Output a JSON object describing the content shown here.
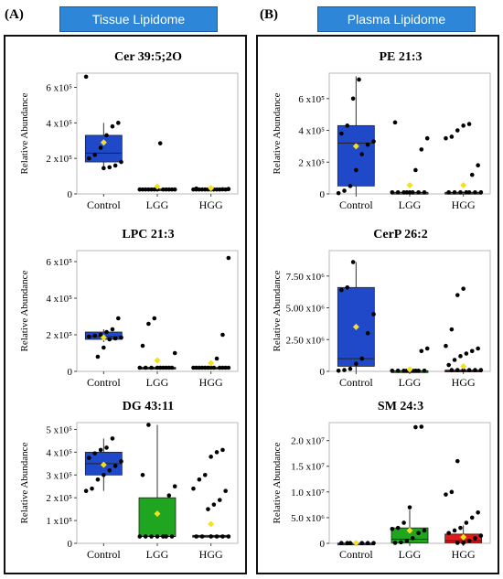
{
  "panels": {
    "A": {
      "letter": "(A)",
      "header": "Tissue Lipidome"
    },
    "B": {
      "letter": "(B)",
      "header": "Plasma Lipidome"
    }
  },
  "colors": {
    "header": "#2e86d9",
    "control_box": "#1f49c9",
    "lgg_box": "#1fa51f",
    "hgg_box": "#e01b1b",
    "mean_marker": "#f5e11a"
  },
  "chart_data": [
    {
      "type": "box",
      "title": "Cer 39:5;2O",
      "ylabel": "Relative Abundance",
      "categories": [
        "Control",
        "LGG",
        "HGG"
      ],
      "ylim": [
        0,
        680000
      ],
      "yticks": [
        0,
        200000,
        400000,
        600000
      ],
      "yticklabels": [
        "0",
        "2 x10⁵",
        "4 x10⁵",
        "6 x10⁵"
      ],
      "boxes": [
        {
          "q1": 180000,
          "median": 230000,
          "q3": 330000,
          "whislo": 150000,
          "whishi": 400000,
          "mean": 290000,
          "points": [
            660000,
            400000,
            380000,
            330000,
            260000,
            220000,
            200000,
            180000,
            160000,
            150000,
            145000
          ]
        },
        {
          "q1": 22000,
          "median": 25000,
          "q3": 28000,
          "whislo": 20000,
          "whishi": 30000,
          "mean": 42000,
          "points": [
            285000,
            25000,
            25000,
            25000,
            25000,
            25000,
            25000,
            25000,
            25000,
            25000,
            25000,
            25000,
            25000
          ]
        },
        {
          "q1": 22000,
          "median": 25000,
          "q3": 28000,
          "whislo": 20000,
          "whishi": 32000,
          "mean": 32000,
          "points": [
            30000,
            28000,
            26000,
            25000,
            25000,
            25000,
            25000,
            25000,
            25000,
            25000,
            25000,
            25000,
            25000,
            25000
          ]
        }
      ]
    },
    {
      "type": "box",
      "title": "LPC 21:3",
      "ylabel": "Relative Abundance",
      "categories": [
        "Control",
        "LGG",
        "HGG"
      ],
      "ylim": [
        0,
        660000
      ],
      "yticks": [
        0,
        200000,
        400000,
        600000
      ],
      "yticklabels": [
        "0",
        "2 x10⁵",
        "4 x10⁵",
        "6 x10⁵"
      ],
      "boxes": [
        {
          "q1": 175000,
          "median": 190000,
          "q3": 215000,
          "whislo": 160000,
          "whishi": 230000,
          "mean": 185000,
          "points": [
            290000,
            230000,
            215000,
            200000,
            195000,
            190000,
            185000,
            180000,
            175000,
            130000,
            80000
          ]
        },
        {
          "q1": 15000,
          "median": 18000,
          "q3": 22000,
          "whislo": 10000,
          "whishi": 25000,
          "mean": 60000,
          "points": [
            290000,
            260000,
            140000,
            100000,
            20000,
            20000,
            20000,
            20000,
            20000,
            20000,
            20000,
            20000,
            20000
          ]
        },
        {
          "q1": 15000,
          "median": 18000,
          "q3": 22000,
          "whislo": 10000,
          "whishi": 25000,
          "mean": 45000,
          "points": [
            620000,
            200000,
            70000,
            20000,
            20000,
            20000,
            20000,
            20000,
            20000,
            20000,
            20000,
            20000,
            20000,
            20000,
            20000
          ]
        }
      ]
    },
    {
      "type": "box",
      "title": "DG 43:11",
      "ylabel": "Relative Abundance",
      "categories": [
        "Control",
        "LGG",
        "HGG"
      ],
      "ylim": [
        0,
        530000
      ],
      "yticks": [
        0,
        100000,
        200000,
        300000,
        400000,
        500000
      ],
      "yticklabels": [
        "0",
        "1 x10⁵",
        "2 x10⁵",
        "3 x10⁵",
        "4 x10⁵",
        "5 x10⁵"
      ],
      "boxes": [
        {
          "q1": 300000,
          "median": 350000,
          "q3": 400000,
          "whislo": 230000,
          "whishi": 460000,
          "mean": 345000,
          "points": [
            460000,
            420000,
            410000,
            395000,
            375000,
            360000,
            340000,
            320000,
            300000,
            280000,
            240000,
            230000
          ]
        },
        {
          "q1": 30000,
          "median": 30000,
          "q3": 200000,
          "whislo": 30000,
          "whishi": 520000,
          "mean": 130000,
          "points": [
            520000,
            300000,
            250000,
            210000,
            30000,
            30000,
            30000,
            30000,
            30000,
            30000,
            30000
          ]
        },
        {
          "q1": 28000,
          "median": 30000,
          "q3": 35000,
          "whislo": 25000,
          "whishi": 40000,
          "mean": 85000,
          "points": [
            410000,
            400000,
            380000,
            300000,
            280000,
            240000,
            230000,
            190000,
            170000,
            150000,
            30000,
            30000,
            30000,
            30000,
            30000,
            30000
          ]
        }
      ]
    },
    {
      "type": "box",
      "title": "PE 21:3",
      "ylabel": "Relative Abundance",
      "categories": [
        "Control",
        "LGG",
        "HGG"
      ],
      "ylim": [
        0,
        760000
      ],
      "yticks": [
        0,
        200000,
        400000,
        600000
      ],
      "yticklabels": [
        "0",
        "2 x10⁵",
        "4 x10⁵",
        "6 x10⁵"
      ],
      "boxes": [
        {
          "q1": 50000,
          "median": 320000,
          "q3": 430000,
          "whislo": 0,
          "whishi": 740000,
          "mean": 300000,
          "points": [
            720000,
            600000,
            430000,
            380000,
            330000,
            310000,
            250000,
            150000,
            50000,
            20000,
            5000
          ]
        },
        {
          "q1": 5000,
          "median": 8000,
          "q3": 10000,
          "whislo": 0,
          "whishi": 15000,
          "mean": 55000,
          "points": [
            450000,
            350000,
            280000,
            150000,
            10000,
            10000,
            10000,
            10000,
            10000,
            10000,
            10000,
            10000
          ]
        },
        {
          "q1": 5000,
          "median": 8000,
          "q3": 10000,
          "whislo": 0,
          "whishi": 15000,
          "mean": 55000,
          "points": [
            440000,
            430000,
            400000,
            360000,
            350000,
            180000,
            120000,
            10000,
            10000,
            10000,
            10000,
            10000,
            10000,
            10000
          ]
        }
      ]
    },
    {
      "type": "box",
      "title": "CerP 26:2",
      "ylabel": "Relative Abundance",
      "categories": [
        "Control",
        "LGG",
        "HGG"
      ],
      "ylim": [
        0,
        9500000
      ],
      "yticks": [
        0,
        2500000,
        5000000,
        7500000
      ],
      "yticklabels": [
        "0",
        "2.50 x10⁶",
        "5.00 x10⁶",
        "7.50 x10⁶"
      ],
      "boxes": [
        {
          "q1": 400000,
          "median": 1000000,
          "q3": 6600000,
          "whislo": 0,
          "whishi": 8600000,
          "mean": 3500000,
          "points": [
            8600000,
            6600000,
            6400000,
            4500000,
            3000000,
            1000000,
            600000,
            200000,
            100000,
            50000
          ]
        },
        {
          "q1": 0,
          "median": 20000,
          "q3": 50000,
          "whislo": 0,
          "whishi": 80000,
          "mean": 150000,
          "points": [
            1800000,
            1600000,
            50000,
            50000,
            50000,
            50000,
            50000,
            50000,
            50000,
            50000,
            50000
          ]
        },
        {
          "q1": 0,
          "median": 30000,
          "q3": 100000,
          "whislo": 0,
          "whishi": 300000,
          "mean": 400000,
          "points": [
            6500000,
            6000000,
            3300000,
            2000000,
            1800000,
            1600000,
            1400000,
            1200000,
            900000,
            500000,
            100000,
            100000,
            100000,
            100000,
            100000,
            100000
          ]
        }
      ]
    },
    {
      "type": "box",
      "title": "SM 24:3",
      "ylabel": "Relative Abundance",
      "categories": [
        "Control",
        "LGG",
        "HGG"
      ],
      "ylim": [
        0,
        23500000
      ],
      "yticks": [
        0,
        5000000,
        10000000,
        15000000,
        20000000
      ],
      "yticklabels": [
        "0",
        "5.0 x10⁶",
        "1.0 x10⁷",
        "1.5 x10⁷",
        "2.0 x10⁷"
      ],
      "boxes": [
        {
          "q1": 0,
          "median": 0,
          "q3": 50000,
          "whislo": 0,
          "whishi": 80000,
          "mean": 50000,
          "points": [
            50000,
            50000,
            50000,
            50000,
            50000,
            50000,
            50000
          ]
        },
        {
          "q1": 100000,
          "median": 800000,
          "q3": 3000000,
          "whislo": 0,
          "whishi": 6500000,
          "mean": 2500000,
          "points": [
            22700000,
            22600000,
            7000000,
            4000000,
            3000000,
            2800000,
            2500000,
            2000000,
            1000000,
            500000,
            200000,
            100000
          ]
        },
        {
          "q1": 100000,
          "median": 500000,
          "q3": 1800000,
          "whislo": 0,
          "whishi": 3500000,
          "mean": 1200000,
          "points": [
            16000000,
            10000000,
            9500000,
            6000000,
            5000000,
            4000000,
            3000000,
            2500000,
            2000000,
            1500000,
            1000000,
            500000,
            100000,
            100000
          ]
        }
      ]
    }
  ]
}
